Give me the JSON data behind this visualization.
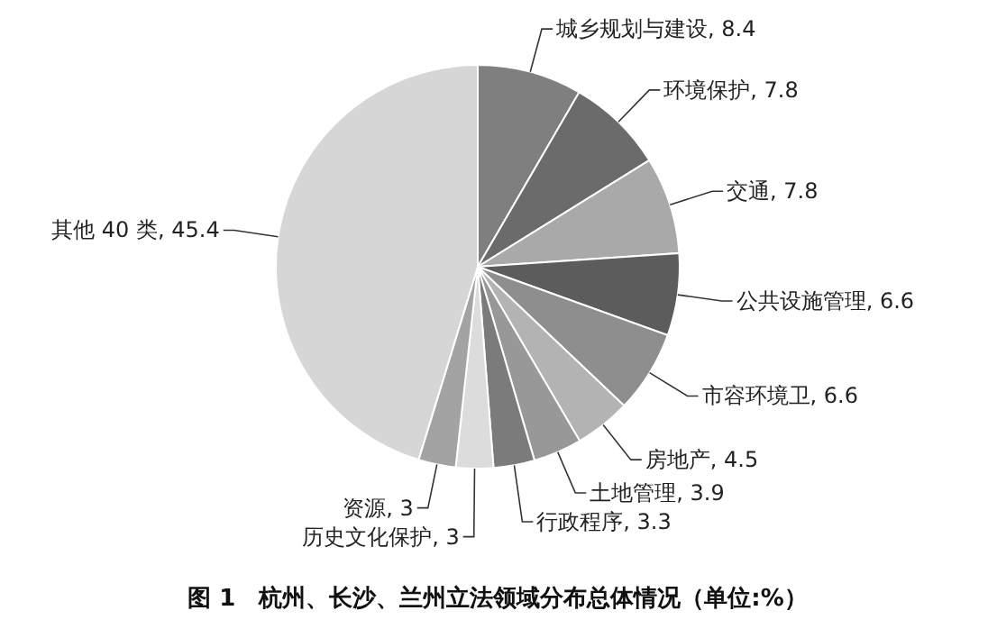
{
  "chart_data": {
    "type": "pie",
    "title": "图 1　杭州、长沙、兰州立法领域分布总体情况（单位:%）",
    "categories": [
      "城乡规划与建设, 8.4",
      "环境保护, 7.8",
      "交通, 7.8",
      "公共设施管理, 6.6",
      "市容环境卫, 6.6",
      "房地产, 4.5",
      "土地管理, 3.9",
      "行政程序, 3.3",
      "历史文化保护, 3",
      "资源, 3",
      "其他 40 类, 45.4"
    ],
    "values": [
      8.4,
      7.8,
      7.8,
      6.6,
      6.6,
      4.5,
      3.9,
      3.3,
      3,
      3,
      45.4
    ],
    "colors": [
      "#7f7f7f",
      "#6b6b6b",
      "#a9a9a9",
      "#5c5c5c",
      "#8e8e8e",
      "#b3b3b3",
      "#989898",
      "#7b7b7b",
      "#dcdcdc",
      "#a3a3a3",
      "#d6d6d6"
    ]
  }
}
